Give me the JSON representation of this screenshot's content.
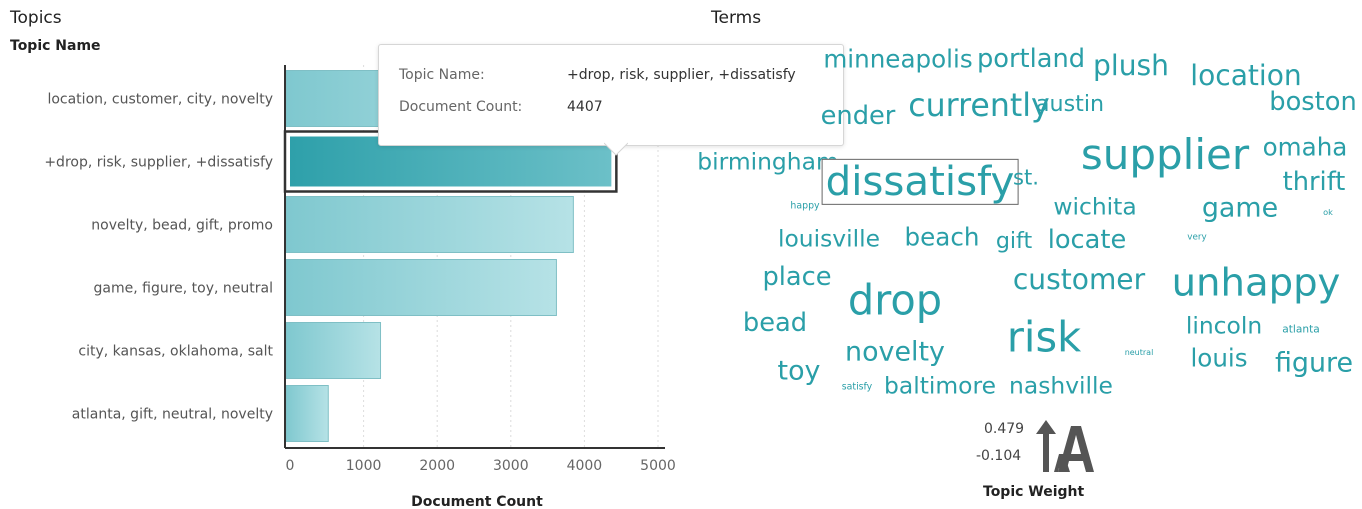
{
  "topics_panel": {
    "title": "Topics",
    "axis_header": "Topic Name"
  },
  "terms_panel": {
    "title": "Terms",
    "legend": {
      "max_label": "0.479",
      "min_label": "-0.104",
      "title": "Topic Weight",
      "icon": "font-size-arrow-icon"
    }
  },
  "tooltip": {
    "rows": [
      {
        "key": "Topic Name:",
        "value": "+drop, risk, supplier, +dissatisfy"
      },
      {
        "key": "Document Count:",
        "value": "4407"
      }
    ]
  },
  "chart_data": {
    "type": "bar",
    "orientation": "horizontal",
    "categories": [
      "location, customer, city, novelty",
      "+drop, risk, supplier, +dissatisfy",
      "novelty, bead, gift, promo",
      "game, figure, toy, neutral",
      "city, kansas, oklahoma, salt",
      "atlanta, gift, neutral, novelty"
    ],
    "values": [
      4000,
      4407,
      3850,
      3620,
      1230,
      520
    ],
    "xlabel": "Document Count",
    "ylabel": "Topic Name",
    "xlim": [
      0,
      5000
    ],
    "xticks": [
      "0",
      "1000",
      "2000",
      "3000",
      "4000",
      "5000"
    ],
    "selected_index": 1,
    "bar_color": "#7fc8cf",
    "selected_bar_color": "#3aa6b0",
    "grid": true
  },
  "word_cloud": {
    "color": "#2a9fa8",
    "selected_term": "dissatisfy",
    "terms": [
      {
        "text": "minneapolis",
        "weight": 0.18
      },
      {
        "text": "portland",
        "weight": 0.2
      },
      {
        "text": "plush",
        "weight": 0.24
      },
      {
        "text": "location",
        "weight": 0.24
      },
      {
        "text": "boston",
        "weight": 0.2
      },
      {
        "text": "ender",
        "weight": 0.2
      },
      {
        "text": "currently",
        "weight": 0.3
      },
      {
        "text": "austin",
        "weight": 0.14
      },
      {
        "text": "supplier",
        "weight": 0.479
      },
      {
        "text": "omaha",
        "weight": 0.18
      },
      {
        "text": "birmingham",
        "weight": 0.16
      },
      {
        "text": "dissatisfy",
        "weight": 0.45
      },
      {
        "text": "st.",
        "weight": 0.12
      },
      {
        "text": "thrift",
        "weight": 0.2
      },
      {
        "text": "happy",
        "weight": -0.08
      },
      {
        "text": "wichita",
        "weight": 0.16
      },
      {
        "text": "game",
        "weight": 0.22
      },
      {
        "text": "ok",
        "weight": -0.1
      },
      {
        "text": "louisville",
        "weight": 0.16
      },
      {
        "text": "beach",
        "weight": 0.18
      },
      {
        "text": "gift",
        "weight": 0.14
      },
      {
        "text": "locate",
        "weight": 0.2
      },
      {
        "text": "very",
        "weight": -0.09
      },
      {
        "text": "place",
        "weight": 0.2
      },
      {
        "text": "drop",
        "weight": 0.47
      },
      {
        "text": "customer",
        "weight": 0.24
      },
      {
        "text": "unhappy",
        "weight": 0.42
      },
      {
        "text": "bead",
        "weight": 0.2
      },
      {
        "text": "risk",
        "weight": 0.47
      },
      {
        "text": "lincoln",
        "weight": 0.16
      },
      {
        "text": "atlanta",
        "weight": -0.06
      },
      {
        "text": "novelty",
        "weight": 0.22
      },
      {
        "text": "neutral",
        "weight": -0.104
      },
      {
        "text": "louis",
        "weight": 0.18
      },
      {
        "text": "figure",
        "weight": 0.22
      },
      {
        "text": "toy",
        "weight": 0.22
      },
      {
        "text": "satisfy",
        "weight": -0.08
      },
      {
        "text": "baltimore",
        "weight": 0.16
      },
      {
        "text": "nashville",
        "weight": 0.16
      }
    ]
  }
}
